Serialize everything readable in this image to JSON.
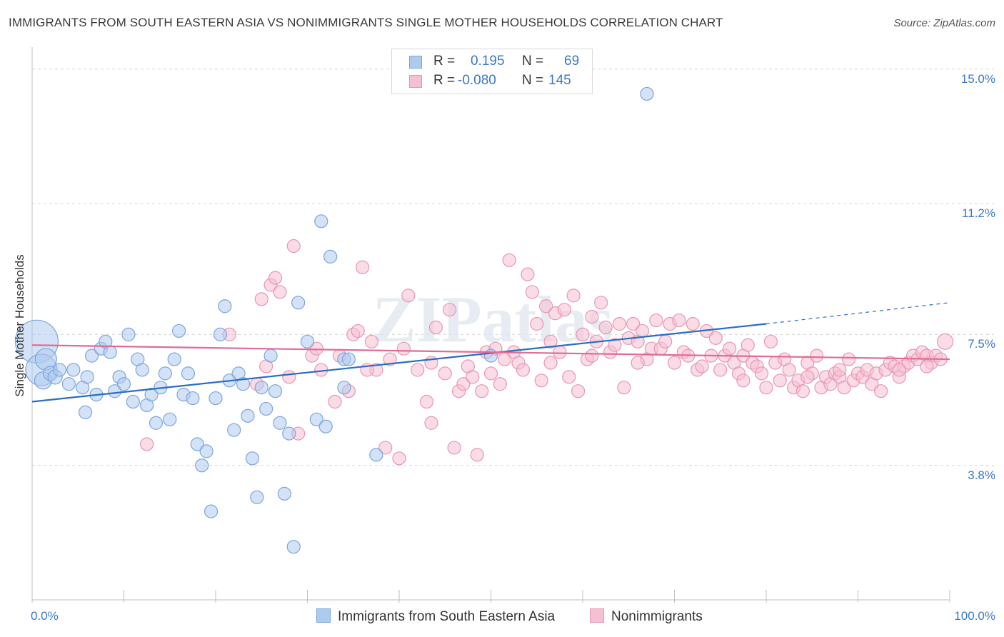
{
  "header": {
    "title": "IMMIGRANTS FROM SOUTH EASTERN ASIA VS NONIMMIGRANTS SINGLE MOTHER HOUSEHOLDS CORRELATION CHART",
    "source": "Source: ZipAtlas.com"
  },
  "legend": {
    "r_label": "R =",
    "n_label": "N =",
    "blue": {
      "r": "0.195",
      "n": "69"
    },
    "pink": {
      "r": "-0.080",
      "n": "145"
    }
  },
  "bottom_legend": {
    "blue_label": "Immigrants from South Eastern Asia",
    "pink_label": "Nonimmigrants"
  },
  "colors": {
    "blue_fill": "#aecbee",
    "blue_stroke": "#7aa6dc",
    "blue_line": "#2b6cc4",
    "pink_fill": "#f5c0d1",
    "pink_stroke": "#e896b3",
    "pink_line": "#e06b98",
    "grid": "#d5d5d5",
    "tick_label": "#3a78c9"
  },
  "chart_data": {
    "type": "scatter",
    "title": "IMMIGRANTS FROM SOUTH EASTERN ASIA VS NONIMMIGRANTS SINGLE MOTHER HOUSEHOLDS CORRELATION CHART",
    "xlabel": "",
    "ylabel": "Single Mother Households",
    "xlim": [
      0,
      100
    ],
    "ylim": [
      0,
      15.5
    ],
    "x_ticks": [
      "0.0%",
      "100.0%"
    ],
    "y_ticks": [
      {
        "value": 3.8,
        "label": "3.8%"
      },
      {
        "value": 7.5,
        "label": "7.5%"
      },
      {
        "value": 11.2,
        "label": "11.2%"
      },
      {
        "value": 15.0,
        "label": "15.0%"
      }
    ],
    "grid": true,
    "watermark": "ZIPatlas",
    "series": [
      {
        "name": "Immigrants from South Eastern Asia",
        "color": "#aecbee",
        "trend": {
          "x": [
            0,
            80
          ],
          "y": [
            5.6,
            7.8
          ],
          "dashed_to": [
            100,
            8.4
          ]
        },
        "points": [
          [
            0.5,
            7.3,
            30
          ],
          [
            1.0,
            6.5,
            22
          ],
          [
            1.5,
            6.8,
            15
          ],
          [
            1.2,
            6.2,
            12
          ],
          [
            2.0,
            6.4,
            10
          ],
          [
            2.5,
            6.3,
            10
          ],
          [
            3.0,
            6.5,
            9
          ],
          [
            4.0,
            6.1,
            9
          ],
          [
            4.5,
            6.5,
            9
          ],
          [
            5.5,
            6.0,
            9
          ],
          [
            5.8,
            5.3,
            9
          ],
          [
            6.0,
            6.3,
            9
          ],
          [
            6.5,
            6.9,
            9
          ],
          [
            7.0,
            5.8,
            9
          ],
          [
            7.5,
            7.1,
            9
          ],
          [
            8.0,
            7.3,
            9
          ],
          [
            8.5,
            7.0,
            9
          ],
          [
            9.0,
            5.9,
            9
          ],
          [
            9.5,
            6.3,
            9
          ],
          [
            10.0,
            6.1,
            9
          ],
          [
            10.5,
            7.5,
            9
          ],
          [
            11.0,
            5.6,
            9
          ],
          [
            11.5,
            6.8,
            9
          ],
          [
            12.0,
            6.5,
            9
          ],
          [
            12.5,
            5.5,
            9
          ],
          [
            13.0,
            5.8,
            9
          ],
          [
            13.5,
            5.0,
            9
          ],
          [
            14.0,
            6.0,
            9
          ],
          [
            14.5,
            6.4,
            9
          ],
          [
            15.0,
            5.1,
            9
          ],
          [
            15.5,
            6.8,
            9
          ],
          [
            16.0,
            7.6,
            9
          ],
          [
            16.5,
            5.8,
            9
          ],
          [
            17.0,
            6.4,
            9
          ],
          [
            17.5,
            5.7,
            9
          ],
          [
            18.0,
            4.4,
            9
          ],
          [
            18.5,
            3.8,
            9
          ],
          [
            19.0,
            4.2,
            9
          ],
          [
            19.5,
            2.5,
            9
          ],
          [
            20.0,
            5.7,
            9
          ],
          [
            20.5,
            7.5,
            9
          ],
          [
            21.0,
            8.3,
            9
          ],
          [
            21.5,
            6.2,
            9
          ],
          [
            22.0,
            4.8,
            9
          ],
          [
            22.5,
            6.4,
            9
          ],
          [
            23.0,
            6.1,
            9
          ],
          [
            23.5,
            5.2,
            9
          ],
          [
            24.0,
            4.0,
            9
          ],
          [
            24.5,
            2.9,
            9
          ],
          [
            25.0,
            6.0,
            9
          ],
          [
            25.5,
            5.4,
            9
          ],
          [
            26.0,
            6.9,
            9
          ],
          [
            26.5,
            5.9,
            9
          ],
          [
            27.0,
            5.0,
            9
          ],
          [
            27.5,
            3.0,
            9
          ],
          [
            28.0,
            4.7,
            9
          ],
          [
            28.5,
            1.5,
            9
          ],
          [
            29.0,
            8.4,
            9
          ],
          [
            30.0,
            7.3,
            9
          ],
          [
            31.0,
            5.1,
            9
          ],
          [
            31.5,
            10.7,
            9
          ],
          [
            32.0,
            4.9,
            9
          ],
          [
            32.5,
            9.7,
            9
          ],
          [
            34.0,
            6.8,
            9
          ],
          [
            34.5,
            6.8,
            9
          ],
          [
            34.0,
            6.0,
            9
          ],
          [
            37.5,
            4.1,
            9
          ],
          [
            50.0,
            6.9,
            9
          ],
          [
            67.0,
            14.3,
            9
          ]
        ]
      },
      {
        "name": "Nonimmigrants",
        "color": "#f5c0d1",
        "trend": {
          "x": [
            0,
            100
          ],
          "y": [
            7.2,
            6.8
          ]
        },
        "points": [
          [
            12.5,
            4.4,
            9
          ],
          [
            21.5,
            7.5,
            9
          ],
          [
            24.5,
            6.1,
            9
          ],
          [
            25.0,
            8.5,
            9
          ],
          [
            25.5,
            6.6,
            9
          ],
          [
            26.0,
            8.9,
            9
          ],
          [
            26.5,
            9.1,
            9
          ],
          [
            27.0,
            8.7,
            9
          ],
          [
            28.0,
            6.3,
            9
          ],
          [
            28.5,
            10.0,
            9
          ],
          [
            29.0,
            4.7,
            9
          ],
          [
            30.5,
            6.9,
            9
          ],
          [
            31.0,
            7.1,
            9
          ],
          [
            31.5,
            6.5,
            9
          ],
          [
            33.0,
            5.6,
            9
          ],
          [
            33.5,
            6.9,
            9
          ],
          [
            34.5,
            5.9,
            9
          ],
          [
            35.0,
            7.5,
            9
          ],
          [
            35.5,
            7.6,
            9
          ],
          [
            36.0,
            9.4,
            9
          ],
          [
            37.0,
            7.3,
            9
          ],
          [
            37.5,
            6.5,
            9
          ],
          [
            38.5,
            4.3,
            9
          ],
          [
            39.0,
            6.8,
            9
          ],
          [
            40.0,
            4.0,
            9
          ],
          [
            40.5,
            7.1,
            9
          ],
          [
            41.0,
            8.6,
            9
          ],
          [
            42.0,
            6.5,
            9
          ],
          [
            43.0,
            5.6,
            9
          ],
          [
            43.5,
            5.0,
            9
          ],
          [
            44.0,
            7.7,
            9
          ],
          [
            45.0,
            6.4,
            9
          ],
          [
            45.5,
            8.2,
            9
          ],
          [
            46.0,
            4.3,
            9
          ],
          [
            46.5,
            5.9,
            9
          ],
          [
            47.0,
            6.1,
            9
          ],
          [
            47.5,
            6.6,
            9
          ],
          [
            48.0,
            6.3,
            9
          ],
          [
            48.5,
            4.1,
            9
          ],
          [
            49.0,
            5.9,
            9
          ],
          [
            49.5,
            7.0,
            9
          ],
          [
            50.0,
            6.4,
            9
          ],
          [
            50.5,
            7.1,
            9
          ],
          [
            51.0,
            6.1,
            9
          ],
          [
            51.5,
            6.8,
            9
          ],
          [
            52.0,
            9.6,
            9
          ],
          [
            52.5,
            7.0,
            9
          ],
          [
            53.0,
            6.7,
            9
          ],
          [
            53.5,
            6.5,
            9
          ],
          [
            54.0,
            9.2,
            9
          ],
          [
            54.5,
            8.7,
            9
          ],
          [
            55.0,
            7.8,
            9
          ],
          [
            55.5,
            6.2,
            9
          ],
          [
            56.0,
            8.3,
            9
          ],
          [
            56.5,
            7.3,
            9
          ],
          [
            57.0,
            8.1,
            9
          ],
          [
            57.5,
            7.0,
            9
          ],
          [
            58.0,
            8.2,
            9
          ],
          [
            58.5,
            6.3,
            9
          ],
          [
            59.0,
            8.6,
            9
          ],
          [
            59.5,
            5.9,
            9
          ],
          [
            60.0,
            7.5,
            9
          ],
          [
            60.5,
            6.8,
            9
          ],
          [
            61.0,
            8.0,
            9
          ],
          [
            61.5,
            7.3,
            9
          ],
          [
            62.0,
            8.4,
            9
          ],
          [
            62.5,
            7.7,
            9
          ],
          [
            63.0,
            7.0,
            9
          ],
          [
            63.5,
            7.2,
            9
          ],
          [
            64.0,
            7.8,
            9
          ],
          [
            64.5,
            6.0,
            9
          ],
          [
            65.0,
            7.4,
            9
          ],
          [
            65.5,
            7.8,
            9
          ],
          [
            66.0,
            7.3,
            9
          ],
          [
            66.5,
            7.6,
            9
          ],
          [
            67.0,
            6.8,
            9
          ],
          [
            67.5,
            7.1,
            9
          ],
          [
            68.0,
            7.9,
            9
          ],
          [
            68.5,
            7.1,
            9
          ],
          [
            69.0,
            7.3,
            9
          ],
          [
            69.5,
            7.8,
            9
          ],
          [
            70.0,
            6.7,
            9
          ],
          [
            70.5,
            7.9,
            9
          ],
          [
            71.0,
            7.0,
            9
          ],
          [
            71.5,
            6.9,
            9
          ],
          [
            72.0,
            7.8,
            9
          ],
          [
            72.5,
            6.5,
            9
          ],
          [
            73.0,
            6.6,
            9
          ],
          [
            73.5,
            7.6,
            9
          ],
          [
            74.0,
            6.9,
            9
          ],
          [
            74.5,
            7.4,
            9
          ],
          [
            75.0,
            6.5,
            9
          ],
          [
            75.5,
            6.9,
            9
          ],
          [
            76.0,
            7.1,
            9
          ],
          [
            76.5,
            6.7,
            9
          ],
          [
            77.0,
            6.4,
            9
          ],
          [
            77.5,
            6.9,
            9
          ],
          [
            78.0,
            7.2,
            9
          ],
          [
            78.5,
            6.7,
            9
          ],
          [
            79.0,
            6.6,
            9
          ],
          [
            79.5,
            6.4,
            9
          ],
          [
            80.0,
            6.0,
            9
          ],
          [
            80.5,
            7.3,
            9
          ],
          [
            81.0,
            6.7,
            9
          ],
          [
            81.5,
            6.2,
            9
          ],
          [
            82.0,
            6.8,
            9
          ],
          [
            82.5,
            6.5,
            9
          ],
          [
            83.0,
            6.0,
            9
          ],
          [
            83.5,
            6.2,
            9
          ],
          [
            84.0,
            5.9,
            9
          ],
          [
            84.5,
            6.7,
            9
          ],
          [
            85.0,
            6.4,
            9
          ],
          [
            85.5,
            6.9,
            9
          ],
          [
            86.0,
            6.0,
            9
          ],
          [
            86.5,
            6.3,
            9
          ],
          [
            87.0,
            6.1,
            9
          ],
          [
            87.5,
            6.4,
            9
          ],
          [
            88.0,
            6.3,
            9
          ],
          [
            88.5,
            6.0,
            9
          ],
          [
            89.0,
            6.8,
            9
          ],
          [
            89.5,
            6.2,
            9
          ],
          [
            90.0,
            6.4,
            9
          ],
          [
            90.5,
            6.3,
            9
          ],
          [
            91.0,
            6.5,
            9
          ],
          [
            91.5,
            6.1,
            9
          ],
          [
            92.0,
            6.4,
            9
          ],
          [
            92.5,
            5.9,
            9
          ],
          [
            93.0,
            6.5,
            9
          ],
          [
            93.5,
            6.7,
            9
          ],
          [
            94.0,
            6.6,
            9
          ],
          [
            94.5,
            6.3,
            9
          ],
          [
            95.0,
            6.6,
            9
          ],
          [
            95.5,
            6.7,
            9
          ],
          [
            96.0,
            6.9,
            9
          ],
          [
            96.5,
            6.8,
            9
          ],
          [
            97.0,
            7.0,
            9
          ],
          [
            97.5,
            6.9,
            9
          ],
          [
            98.0,
            6.7,
            9
          ],
          [
            98.5,
            6.9,
            9
          ],
          [
            99.0,
            6.8,
            9
          ],
          [
            99.5,
            7.3,
            11
          ],
          [
            43.5,
            6.7,
            9
          ],
          [
            36.5,
            6.5,
            9
          ],
          [
            61.0,
            6.9,
            9
          ],
          [
            56.5,
            6.7,
            9
          ],
          [
            66.0,
            6.7,
            9
          ],
          [
            88.0,
            6.5,
            9
          ],
          [
            77.5,
            6.2,
            9
          ],
          [
            84.5,
            6.3,
            9
          ],
          [
            94.5,
            6.5,
            9
          ],
          [
            97.5,
            6.6,
            9
          ]
        ]
      }
    ]
  }
}
